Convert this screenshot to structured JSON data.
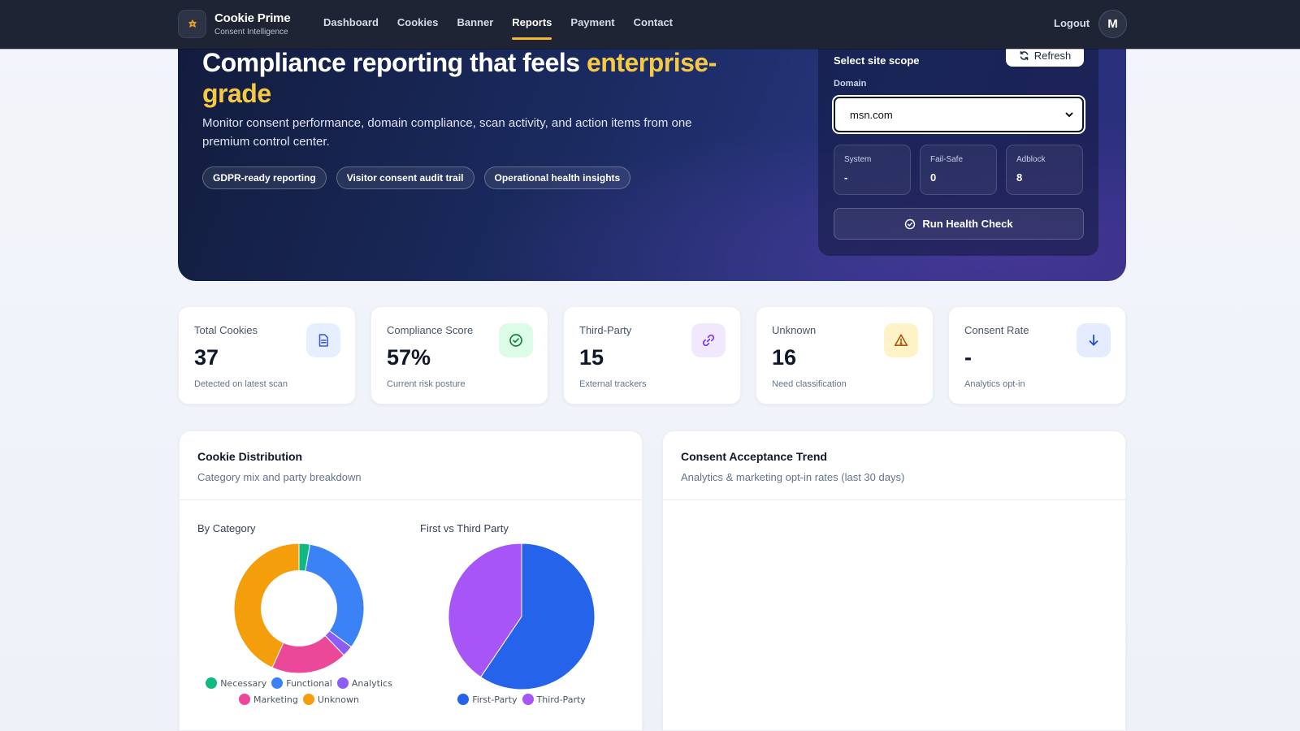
{
  "brand": {
    "name": "Cookie Prime",
    "subtitle": "Consent Intelligence"
  },
  "nav": {
    "items": [
      {
        "label": "Dashboard"
      },
      {
        "label": "Cookies"
      },
      {
        "label": "Banner"
      },
      {
        "label": "Reports",
        "active": true
      },
      {
        "label": "Payment"
      },
      {
        "label": "Contact"
      }
    ],
    "logout": "Logout",
    "avatar_initial": "M"
  },
  "hero": {
    "title_main": "Compliance reporting that feels ",
    "title_highlight": "enterprise-grade",
    "description": "Monitor consent performance, domain compliance, scan activity, and action items from one premium control center.",
    "chips": [
      "GDPR-ready reporting",
      "Visitor consent audit trail",
      "Operational health insights"
    ]
  },
  "scope": {
    "title": "Select site scope",
    "refresh_label": "Refresh",
    "domain_label": "Domain",
    "domain_value": "msn.com",
    "stats": [
      {
        "label": "System",
        "value": "-"
      },
      {
        "label": "Fail-Safe",
        "value": "0"
      },
      {
        "label": "Adblock",
        "value": "8"
      }
    ],
    "health_button": "Run Health Check"
  },
  "kpis": [
    {
      "label": "Total Cookies",
      "value": "37",
      "sub": "Detected on latest scan",
      "icon": "document-icon",
      "icon_bg": "#e6efff",
      "icon_color": "#3b5bdb"
    },
    {
      "label": "Compliance Score",
      "value": "57%",
      "sub": "Current risk posture",
      "icon": "check-circle-icon",
      "icon_bg": "#dcfce7",
      "icon_color": "#15803d"
    },
    {
      "label": "Third-Party",
      "value": "15",
      "sub": "External trackers",
      "icon": "link-icon",
      "icon_bg": "#f1e8ff",
      "icon_color": "#7c3aed"
    },
    {
      "label": "Unknown",
      "value": "16",
      "sub": "Need classification",
      "icon": "warning-icon",
      "icon_bg": "#fef3c7",
      "icon_color": "#b45309"
    },
    {
      "label": "Consent Rate",
      "value": "-",
      "sub": "Analytics opt-in",
      "icon": "arrow-down-icon",
      "icon_bg": "#e6ecff",
      "icon_color": "#1d4ed8"
    }
  ],
  "distribution": {
    "title": "Cookie Distribution",
    "subtitle": "Category mix and party breakdown",
    "by_category_title": "By Category",
    "party_title": "First vs Third Party"
  },
  "trend": {
    "title": "Consent Acceptance Trend",
    "subtitle": "Analytics & marketing opt-in rates (last 30 days)"
  },
  "chart_data": [
    {
      "type": "pie",
      "variant": "doughnut",
      "title": "By Category",
      "categories": [
        "Necessary",
        "Functional",
        "Analytics",
        "Marketing",
        "Unknown"
      ],
      "values": [
        1,
        12,
        1,
        7,
        16
      ],
      "colors": [
        "#10b981",
        "#3b82f6",
        "#8b5cf6",
        "#ec4899",
        "#f59e0b"
      ],
      "legend": "bottom"
    },
    {
      "type": "pie",
      "title": "First vs Third Party",
      "categories": [
        "First-Party",
        "Third-Party"
      ],
      "values": [
        22,
        15
      ],
      "colors": [
        "#2563eb",
        "#a855f7"
      ],
      "legend": "bottom"
    }
  ]
}
